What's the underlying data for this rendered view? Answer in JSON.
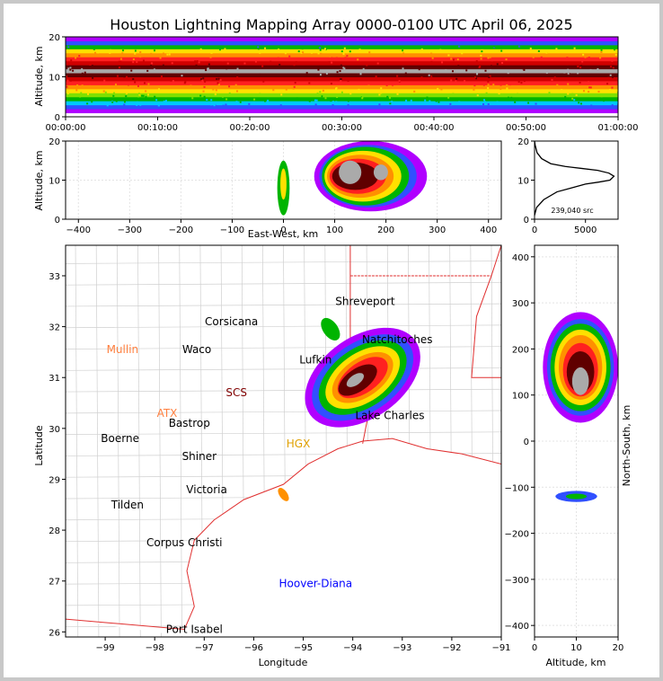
{
  "chart_data": [
    {
      "id": "time_height",
      "type": "heatmap",
      "title": "Houston Lightning Mapping Array 0000-0100 UTC April 06, 2025",
      "ylabel": "Altitude, km",
      "xlabel": "",
      "x_ticks": [
        "00:00:00",
        "00:10:00",
        "00:20:00",
        "00:30:00",
        "00:40:00",
        "00:50:00",
        "01:00:00"
      ],
      "y_ticks": [
        0,
        10,
        20
      ],
      "xlim_minutes": [
        0,
        60
      ],
      "ylim": [
        0,
        20
      ],
      "band_altitudes_km": [
        2,
        3,
        4,
        5,
        6,
        7,
        8,
        9,
        10,
        11,
        12,
        13,
        14,
        15,
        16,
        17,
        18,
        19,
        20
      ],
      "band_colors": [
        "#b000ff",
        "#3050ff",
        "#00c8ff",
        "#00b400",
        "#80e000",
        "#ffe000",
        "#ff9000",
        "#ff2020",
        "#d00000",
        "#600000",
        "#aaaaaa",
        "#600000",
        "#d00000",
        "#ff2020",
        "#ff9000",
        "#ffe000",
        "#00b400",
        "#3050ff",
        "#b000ff"
      ]
    },
    {
      "id": "east_west_altitude",
      "type": "heatmap",
      "xlabel": "East-West, km",
      "ylabel": "Altitude, km",
      "x_ticks": [
        -400,
        -300,
        -200,
        -100,
        0,
        100,
        200,
        300,
        400
      ],
      "y_ticks": [
        0,
        10,
        20
      ],
      "xlim": [
        -425,
        425
      ],
      "ylim": [
        0,
        20
      ],
      "cells": [
        {
          "x": 0,
          "z": 8,
          "rx": 12,
          "rz": 7,
          "color": "#00b400"
        },
        {
          "x": 0,
          "z": 9,
          "rx": 6,
          "rz": 4,
          "color": "#ffe000"
        },
        {
          "x": 170,
          "z": 11,
          "rx": 110,
          "rz": 9,
          "color": "#b000ff"
        },
        {
          "x": 165,
          "z": 11,
          "rx": 95,
          "rz": 8,
          "color": "#3050ff"
        },
        {
          "x": 160,
          "z": 11,
          "rx": 85,
          "rz": 7.5,
          "color": "#00b400"
        },
        {
          "x": 155,
          "z": 11,
          "rx": 75,
          "rz": 6.5,
          "color": "#ffe000"
        },
        {
          "x": 150,
          "z": 11,
          "rx": 65,
          "rz": 5.5,
          "color": "#ff9000"
        },
        {
          "x": 145,
          "z": 11,
          "rx": 55,
          "rz": 4.5,
          "color": "#ff2020"
        },
        {
          "x": 140,
          "z": 11,
          "rx": 45,
          "rz": 3.5,
          "color": "#600000"
        },
        {
          "x": 130,
          "z": 12,
          "rx": 22,
          "rz": 3,
          "color": "#aaaaaa"
        },
        {
          "x": 190,
          "z": 12,
          "rx": 14,
          "rz": 2,
          "color": "#aaaaaa"
        }
      ]
    },
    {
      "id": "altitude_histogram",
      "type": "line",
      "x_ticks": [
        0,
        5000
      ],
      "y_ticks": [
        0,
        10,
        20
      ],
      "xlim": [
        0,
        8200
      ],
      "ylim": [
        0,
        20
      ],
      "annotation": "239,040 src",
      "x": [
        0,
        200,
        900,
        2200,
        3600,
        5000,
        6300,
        7400,
        7800,
        7300,
        6200,
        4600,
        3000,
        1600,
        700,
        250,
        60,
        0
      ],
      "y": [
        1,
        3,
        5,
        7,
        8,
        9,
        9.5,
        10,
        11,
        11.8,
        12.5,
        13,
        13.5,
        14.2,
        15.5,
        17,
        19,
        20
      ]
    },
    {
      "id": "plan_view",
      "type": "heatmap",
      "xlabel": "Longitude",
      "ylabel": "Latitude",
      "x_ticks": [
        -99,
        -98,
        -97,
        -96,
        -95,
        -94,
        -93,
        -92,
        -91
      ],
      "y_ticks": [
        26,
        27,
        28,
        29,
        30,
        31,
        32,
        33
      ],
      "xlim": [
        -99.8,
        -91
      ],
      "ylim": [
        25.9,
        33.6
      ],
      "cities": [
        {
          "name": "Shreveport",
          "lon": -93.75,
          "lat": 32.5,
          "color": "#000000"
        },
        {
          "name": "Corsicana",
          "lon": -96.45,
          "lat": 32.1,
          "color": "#000000"
        },
        {
          "name": "Mullin",
          "lon": -98.65,
          "lat": 31.55,
          "color": "#ff8040"
        },
        {
          "name": "Waco",
          "lon": -97.15,
          "lat": 31.55,
          "color": "#000000"
        },
        {
          "name": "Natchitoches",
          "lon": -93.1,
          "lat": 31.75,
          "color": "#000000"
        },
        {
          "name": "Lufkin",
          "lon": -94.75,
          "lat": 31.35,
          "color": "#000000"
        },
        {
          "name": "SCS",
          "lon": -96.35,
          "lat": 30.7,
          "color": "#800000"
        },
        {
          "name": "ATX",
          "lon": -97.75,
          "lat": 30.3,
          "color": "#ff8040"
        },
        {
          "name": "Bastrop",
          "lon": -97.3,
          "lat": 30.1,
          "color": "#000000"
        },
        {
          "name": "Lake Charles",
          "lon": -93.25,
          "lat": 30.25,
          "color": "#000000"
        },
        {
          "name": "Boerne",
          "lon": -98.7,
          "lat": 29.8,
          "color": "#000000"
        },
        {
          "name": "HGX",
          "lon": -95.1,
          "lat": 29.7,
          "color": "#e0a000"
        },
        {
          "name": "Shiner",
          "lon": -97.1,
          "lat": 29.45,
          "color": "#000000"
        },
        {
          "name": "Victoria",
          "lon": -96.95,
          "lat": 28.8,
          "color": "#000000"
        },
        {
          "name": "Tilden",
          "lon": -98.55,
          "lat": 28.5,
          "color": "#000000"
        },
        {
          "name": "Corpus Christi",
          "lon": -97.4,
          "lat": 27.75,
          "color": "#000000"
        },
        {
          "name": "Hoover-Diana",
          "lon": -94.75,
          "lat": 26.95,
          "color": "#0000ff"
        },
        {
          "name": "Port Isabel",
          "lon": -97.2,
          "lat": 26.05,
          "color": "#000000"
        }
      ],
      "storm_cells": [
        {
          "lon": -93.8,
          "lat": 31.0,
          "rx": 1.3,
          "ry": 0.8,
          "color": "#b000ff"
        },
        {
          "lon": -93.8,
          "lat": 31.0,
          "rx": 1.15,
          "ry": 0.68,
          "color": "#3050ff"
        },
        {
          "lon": -93.8,
          "lat": 31.0,
          "rx": 1.0,
          "ry": 0.58,
          "color": "#00b400"
        },
        {
          "lon": -93.8,
          "lat": 31.0,
          "rx": 0.85,
          "ry": 0.48,
          "color": "#ffe000"
        },
        {
          "lon": -93.8,
          "lat": 31.0,
          "rx": 0.7,
          "ry": 0.38,
          "color": "#ff9000"
        },
        {
          "lon": -93.8,
          "lat": 31.0,
          "rx": 0.58,
          "ry": 0.3,
          "color": "#ff2020"
        },
        {
          "lon": -93.9,
          "lat": 30.95,
          "rx": 0.45,
          "ry": 0.22,
          "color": "#600000"
        },
        {
          "lon": -93.95,
          "lat": 30.95,
          "rx": 0.2,
          "ry": 0.1,
          "color": "#aaaaaa"
        },
        {
          "lon": -94.45,
          "lat": 31.95,
          "rx": 0.15,
          "ry": 0.25,
          "color": "#00b400"
        },
        {
          "lon": -95.4,
          "lat": 28.7,
          "rx": 0.08,
          "ry": 0.15,
          "color": "#ff9000"
        }
      ]
    },
    {
      "id": "altitude_north_south",
      "type": "heatmap",
      "xlabel": "Altitude, km",
      "ylabel": "North-South, km",
      "x_ticks": [
        0,
        10,
        20
      ],
      "y_ticks": [
        -400,
        -300,
        -200,
        -100,
        0,
        100,
        200,
        300,
        400
      ],
      "xlim": [
        0,
        20
      ],
      "ylim": [
        -425,
        425
      ],
      "cells": [
        {
          "z": 11,
          "y": 160,
          "rz": 9,
          "ry": 120,
          "color": "#b000ff"
        },
        {
          "z": 11,
          "y": 160,
          "rz": 8,
          "ry": 105,
          "color": "#3050ff"
        },
        {
          "z": 11,
          "y": 160,
          "rz": 7.2,
          "ry": 95,
          "color": "#00b400"
        },
        {
          "z": 11,
          "y": 160,
          "rz": 6.2,
          "ry": 82,
          "color": "#ffe000"
        },
        {
          "z": 11,
          "y": 160,
          "rz": 5.2,
          "ry": 70,
          "color": "#ff9000"
        },
        {
          "z": 11,
          "y": 155,
          "rz": 4.2,
          "ry": 58,
          "color": "#ff2020"
        },
        {
          "z": 11,
          "y": 150,
          "rz": 3.3,
          "ry": 45,
          "color": "#600000"
        },
        {
          "z": 11,
          "y": 130,
          "rz": 2,
          "ry": 30,
          "color": "#aaaaaa"
        },
        {
          "z": 10,
          "y": -120,
          "rz": 5,
          "ry": 12,
          "color": "#3050ff"
        },
        {
          "z": 10,
          "y": -120,
          "rz": 2.5,
          "ry": 6,
          "color": "#00b400"
        }
      ]
    }
  ]
}
